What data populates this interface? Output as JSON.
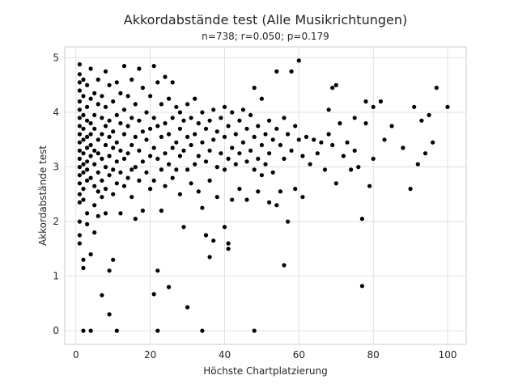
{
  "chart_data": {
    "type": "scatter",
    "title": "Akkordabstände test (Alle Musikrichtungen)",
    "subtitle": "n=738; r=0.050; p=0.179",
    "xlabel": "Höchste Chartplatzierung",
    "ylabel": "Akkordabstände test",
    "xlim": [
      -3,
      105
    ],
    "ylim": [
      -0.25,
      5.2
    ],
    "xticks": [
      0,
      20,
      40,
      60,
      80,
      100
    ],
    "yticks": [
      0,
      1,
      2,
      3,
      4,
      5
    ],
    "xtick_labels": [
      "0",
      "20",
      "40",
      "60",
      "80",
      "100"
    ],
    "ytick_labels": [
      "0",
      "1",
      "2",
      "3",
      "4",
      "5"
    ],
    "grid": true,
    "marker_color": "#000000",
    "marker": "circle",
    "points": [
      [
        1,
        4.88
      ],
      [
        1,
        4.7
      ],
      [
        1,
        4.55
      ],
      [
        1,
        4.4
      ],
      [
        1,
        4.2
      ],
      [
        1,
        4.05
      ],
      [
        1,
        3.9
      ],
      [
        1,
        3.75
      ],
      [
        1,
        3.6
      ],
      [
        1,
        3.45
      ],
      [
        1,
        3.3
      ],
      [
        1,
        3.15
      ],
      [
        1,
        3.0
      ],
      [
        1,
        2.85
      ],
      [
        1,
        2.7
      ],
      [
        1,
        2.5
      ],
      [
        1,
        2.35
      ],
      [
        1,
        2.0
      ],
      [
        1,
        1.75
      ],
      [
        1,
        1.6
      ],
      [
        2,
        4.6
      ],
      [
        2,
        4.3
      ],
      [
        2,
        3.95
      ],
      [
        2,
        3.7
      ],
      [
        2,
        3.5
      ],
      [
        2,
        3.25
      ],
      [
        2,
        3.05
      ],
      [
        2,
        2.9
      ],
      [
        2,
        2.6
      ],
      [
        2,
        2.4
      ],
      [
        2,
        1.3
      ],
      [
        2,
        1.15
      ],
      [
        2,
        0.0
      ],
      [
        3,
        4.5
      ],
      [
        3,
        4.1
      ],
      [
        3,
        3.85
      ],
      [
        3,
        3.55
      ],
      [
        3,
        3.35
      ],
      [
        3,
        3.1
      ],
      [
        3,
        2.95
      ],
      [
        3,
        2.75
      ],
      [
        3,
        2.15
      ],
      [
        3,
        1.95
      ],
      [
        4,
        4.8
      ],
      [
        4,
        4.25
      ],
      [
        4,
        3.8
      ],
      [
        4,
        3.6
      ],
      [
        4,
        3.4
      ],
      [
        4,
        3.2
      ],
      [
        4,
        2.8
      ],
      [
        4,
        1.4
      ],
      [
        4,
        0.0
      ],
      [
        5,
        4.35
      ],
      [
        5,
        3.95
      ],
      [
        5,
        3.7
      ],
      [
        5,
        3.3
      ],
      [
        5,
        3.05
      ],
      [
        5,
        2.65
      ],
      [
        5,
        2.3
      ],
      [
        5,
        1.8
      ],
      [
        6,
        4.6
      ],
      [
        6,
        4.15
      ],
      [
        6,
        3.5
      ],
      [
        6,
        3.25
      ],
      [
        6,
        2.9
      ],
      [
        6,
        2.55
      ],
      [
        6,
        2.1
      ],
      [
        7,
        4.3
      ],
      [
        7,
        3.9
      ],
      [
        7,
        3.6
      ],
      [
        7,
        3.15
      ],
      [
        7,
        2.75
      ],
      [
        7,
        2.45
      ],
      [
        7,
        0.65
      ],
      [
        8,
        4.75
      ],
      [
        8,
        4.1
      ],
      [
        8,
        3.75
      ],
      [
        8,
        3.4
      ],
      [
        8,
        3.0
      ],
      [
        8,
        2.6
      ],
      [
        8,
        2.15
      ],
      [
        9,
        4.5
      ],
      [
        9,
        3.85
      ],
      [
        9,
        3.55
      ],
      [
        9,
        3.2
      ],
      [
        9,
        2.85
      ],
      [
        9,
        1.1
      ],
      [
        9,
        0.3
      ],
      [
        10,
        4.2
      ],
      [
        10,
        3.65
      ],
      [
        10,
        3.35
      ],
      [
        10,
        2.95
      ],
      [
        10,
        2.5
      ],
      [
        10,
        1.3
      ],
      [
        11,
        4.55
      ],
      [
        11,
        3.95
      ],
      [
        11,
        3.45
      ],
      [
        11,
        3.1
      ],
      [
        11,
        2.7
      ],
      [
        11,
        0.0
      ],
      [
        12,
        4.35
      ],
      [
        12,
        3.8
      ],
      [
        12,
        3.3
      ],
      [
        12,
        2.9
      ],
      [
        12,
        2.15
      ],
      [
        13,
        4.85
      ],
      [
        13,
        4.05
      ],
      [
        13,
        3.6
      ],
      [
        13,
        3.15
      ],
      [
        13,
        2.65
      ],
      [
        14,
        4.3
      ],
      [
        14,
        3.75
      ],
      [
        14,
        3.25
      ],
      [
        14,
        2.8
      ],
      [
        15,
        4.6
      ],
      [
        15,
        3.9
      ],
      [
        15,
        3.4
      ],
      [
        15,
        2.95
      ],
      [
        15,
        2.45
      ],
      [
        16,
        4.15
      ],
      [
        16,
        3.55
      ],
      [
        16,
        3.0
      ],
      [
        16,
        2.05
      ],
      [
        17,
        4.8
      ],
      [
        17,
        3.85
      ],
      [
        17,
        3.3
      ],
      [
        17,
        2.75
      ],
      [
        18,
        4.45
      ],
      [
        18,
        3.65
      ],
      [
        18,
        3.1
      ],
      [
        18,
        2.2
      ],
      [
        19,
        4.0
      ],
      [
        19,
        3.5
      ],
      [
        19,
        2.9
      ],
      [
        20,
        4.3
      ],
      [
        20,
        3.7
      ],
      [
        20,
        3.2
      ],
      [
        20,
        2.6
      ],
      [
        21,
        4.85
      ],
      [
        21,
        3.9
      ],
      [
        21,
        3.35
      ],
      [
        21,
        2.75
      ],
      [
        21,
        0.67
      ],
      [
        22,
        4.55
      ],
      [
        22,
        3.75
      ],
      [
        22,
        3.15
      ],
      [
        22,
        1.1
      ],
      [
        22,
        0.0
      ],
      [
        23,
        4.15
      ],
      [
        23,
        3.55
      ],
      [
        23,
        2.95
      ],
      [
        23,
        2.2
      ],
      [
        24,
        4.65
      ],
      [
        24,
        3.8
      ],
      [
        24,
        3.25
      ],
      [
        24,
        2.65
      ],
      [
        25,
        4.25
      ],
      [
        25,
        3.6
      ],
      [
        25,
        3.05
      ],
      [
        25,
        0.8
      ],
      [
        26,
        4.55
      ],
      [
        26,
        3.9
      ],
      [
        26,
        3.35
      ],
      [
        26,
        2.8
      ],
      [
        27,
        4.1
      ],
      [
        27,
        3.45
      ],
      [
        27,
        2.95
      ],
      [
        28,
        4.0
      ],
      [
        28,
        3.7
      ],
      [
        28,
        3.2
      ],
      [
        28,
        2.5
      ],
      [
        29,
        3.85
      ],
      [
        29,
        3.3
      ],
      [
        29,
        1.9
      ],
      [
        30,
        4.15
      ],
      [
        30,
        3.55
      ],
      [
        30,
        2.95
      ],
      [
        30,
        0.43
      ],
      [
        31,
        3.9
      ],
      [
        31,
        3.4
      ],
      [
        31,
        2.7
      ],
      [
        32,
        4.25
      ],
      [
        32,
        3.6
      ],
      [
        32,
        3.05
      ],
      [
        33,
        3.8
      ],
      [
        33,
        3.2
      ],
      [
        33,
        2.55
      ],
      [
        34,
        4.0
      ],
      [
        34,
        3.45
      ],
      [
        34,
        2.25
      ],
      [
        34,
        0.0
      ],
      [
        35,
        3.7
      ],
      [
        35,
        3.1
      ],
      [
        35,
        1.75
      ],
      [
        36,
        3.85
      ],
      [
        36,
        3.3
      ],
      [
        36,
        2.75
      ],
      [
        36,
        1.35
      ],
      [
        37,
        4.05
      ],
      [
        37,
        3.5
      ],
      [
        37,
        1.65
      ],
      [
        38,
        3.65
      ],
      [
        38,
        3.0
      ],
      [
        38,
        2.45
      ],
      [
        39,
        3.9
      ],
      [
        39,
        3.25
      ],
      [
        40,
        4.1
      ],
      [
        40,
        3.55
      ],
      [
        40,
        2.95
      ],
      [
        40,
        1.9
      ],
      [
        41,
        3.75
      ],
      [
        41,
        3.15
      ],
      [
        41,
        1.6
      ],
      [
        41,
        1.5
      ],
      [
        42,
        4.0
      ],
      [
        42,
        3.35
      ],
      [
        42,
        2.4
      ],
      [
        43,
        3.6
      ],
      [
        43,
        3.05
      ],
      [
        44,
        3.85
      ],
      [
        44,
        3.25
      ],
      [
        44,
        2.6
      ],
      [
        45,
        4.05
      ],
      [
        45,
        3.45
      ],
      [
        46,
        3.7
      ],
      [
        46,
        3.1
      ],
      [
        46,
        2.4
      ],
      [
        47,
        3.95
      ],
      [
        47,
        3.3
      ],
      [
        48,
        4.45
      ],
      [
        48,
        3.55
      ],
      [
        48,
        2.95
      ],
      [
        48,
        0.0
      ],
      [
        49,
        3.75
      ],
      [
        49,
        3.15
      ],
      [
        49,
        2.55
      ],
      [
        50,
        4.25
      ],
      [
        50,
        3.4
      ],
      [
        50,
        2.85
      ],
      [
        51,
        3.6
      ],
      [
        51,
        3.05
      ],
      [
        52,
        3.85
      ],
      [
        52,
        3.25
      ],
      [
        52,
        2.35
      ],
      [
        53,
        3.5
      ],
      [
        53,
        2.9
      ],
      [
        54,
        4.75
      ],
      [
        54,
        3.7
      ],
      [
        54,
        2.3
      ],
      [
        55,
        3.4
      ],
      [
        55,
        2.55
      ],
      [
        56,
        3.9
      ],
      [
        56,
        3.15
      ],
      [
        56,
        1.2
      ],
      [
        57,
        3.6
      ],
      [
        57,
        2.0
      ],
      [
        58,
        4.75
      ],
      [
        58,
        3.3
      ],
      [
        59,
        3.75
      ],
      [
        59,
        2.6
      ],
      [
        60,
        4.95
      ],
      [
        60,
        3.5
      ],
      [
        61,
        3.2
      ],
      [
        61,
        2.45
      ],
      [
        62,
        3.55
      ],
      [
        63,
        3.05
      ],
      [
        64,
        3.5
      ],
      [
        65,
        3.25
      ],
      [
        66,
        3.45
      ],
      [
        67,
        2.95
      ],
      [
        68,
        4.05
      ],
      [
        68,
        3.6
      ],
      [
        69,
        4.45
      ],
      [
        69,
        3.4
      ],
      [
        70,
        4.5
      ],
      [
        70,
        2.7
      ],
      [
        71,
        3.8
      ],
      [
        72,
        3.2
      ],
      [
        73,
        3.45
      ],
      [
        74,
        2.95
      ],
      [
        75,
        3.9
      ],
      [
        75,
        3.3
      ],
      [
        76,
        3.0
      ],
      [
        77,
        2.05
      ],
      [
        77,
        0.82
      ],
      [
        78,
        4.2
      ],
      [
        78,
        3.8
      ],
      [
        79,
        2.65
      ],
      [
        80,
        4.1
      ],
      [
        80,
        3.15
      ],
      [
        82,
        4.2
      ],
      [
        83,
        3.5
      ],
      [
        85,
        3.75
      ],
      [
        88,
        3.35
      ],
      [
        90,
        2.6
      ],
      [
        91,
        4.1
      ],
      [
        92,
        3.05
      ],
      [
        93,
        3.85
      ],
      [
        94,
        3.25
      ],
      [
        95,
        3.95
      ],
      [
        96,
        3.45
      ],
      [
        97,
        4.45
      ],
      [
        100,
        4.1
      ]
    ]
  }
}
